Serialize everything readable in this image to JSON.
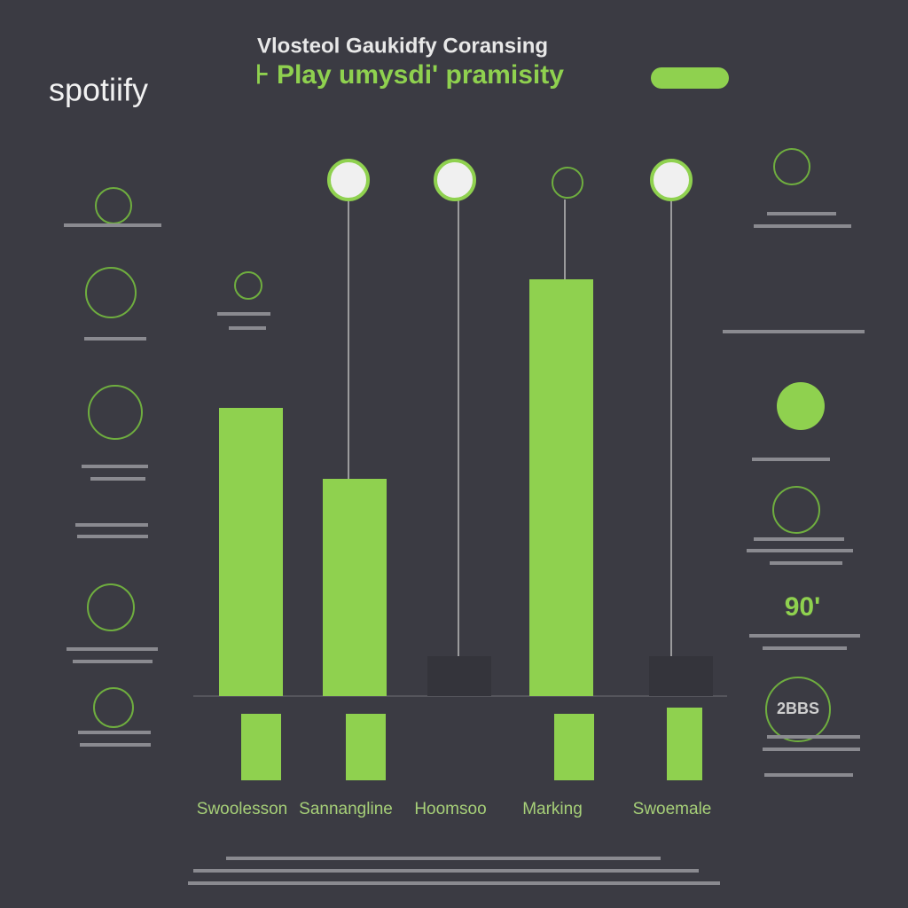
{
  "chart_data": {
    "type": "bar",
    "logo": "spotiify",
    "title": "Vlosteol Gaukidfy Coransing",
    "subtitle": "⊦ Play umysdi' pramisity",
    "categories": [
      "Swoolesson",
      "Sannangline",
      "Hoomsoo",
      "Marking",
      "Swoemale"
    ],
    "values": [
      65,
      49,
      9,
      94,
      9
    ],
    "colors": [
      "#8fd14f",
      "#8fd14f",
      "#34343b",
      "#8fd14f",
      "#34343b"
    ],
    "ylim": [
      0,
      100
    ],
    "annotations": [
      "90'",
      "2BBS"
    ]
  }
}
